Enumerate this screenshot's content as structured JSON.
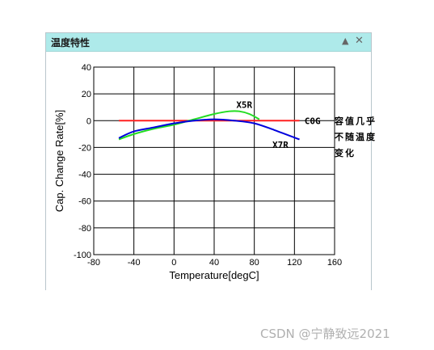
{
  "panel": {
    "title": "温度特性",
    "collapse_icon": "triangle-up-icon",
    "close_icon": "close-icon"
  },
  "watermark": "CSDN @宁静致远2021",
  "chart_data": {
    "type": "line",
    "xlabel": "Temperature[degC]",
    "ylabel": "Cap. Change Rate[%]",
    "xlim": [
      -80,
      160
    ],
    "ylim": [
      -100,
      40
    ],
    "xticks": [
      -80,
      -40,
      0,
      40,
      80,
      120,
      160
    ],
    "yticks": [
      -100,
      -80,
      -60,
      -40,
      -20,
      0,
      20,
      40
    ],
    "grid": true,
    "series": [
      {
        "name": "C0G",
        "color": "#ff2020",
        "x": [
          -55,
          125
        ],
        "y": [
          0,
          0
        ]
      },
      {
        "name": "X5R",
        "color": "#22dd22",
        "x": [
          -55,
          -40,
          -20,
          0,
          20,
          40,
          55,
          65,
          75,
          85
        ],
        "y": [
          -14,
          -10,
          -6,
          -3,
          1,
          5,
          7,
          7,
          5,
          1
        ]
      },
      {
        "name": "X7R",
        "color": "#0000dd",
        "x": [
          -55,
          -40,
          -20,
          0,
          20,
          40,
          60,
          80,
          100,
          125
        ],
        "y": [
          -13,
          -8,
          -5,
          -2,
          0,
          1,
          0,
          -2,
          -7,
          -14
        ]
      }
    ],
    "annotations": [
      {
        "text": "X5R",
        "x": 70,
        "y": 12
      },
      {
        "text": "X7R",
        "x": 106,
        "y": -18
      },
      {
        "text": "C0G",
        "x": 138,
        "y": 0
      },
      {
        "text": "容值几乎",
        "x": 160,
        "y": 0
      },
      {
        "text": "不随温度",
        "x": 160,
        "y": -12
      },
      {
        "text": "变化",
        "x": 160,
        "y": -24
      }
    ]
  }
}
